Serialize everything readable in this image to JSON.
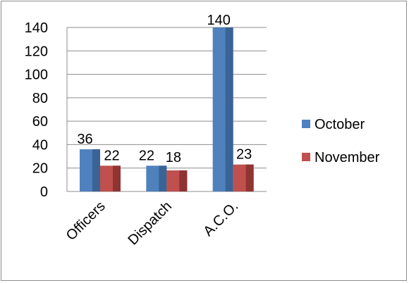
{
  "chart_data": {
    "type": "bar",
    "categories": [
      "Officers",
      "Dispatch",
      "A.C.O."
    ],
    "series": [
      {
        "name": "October",
        "values": [
          36,
          22,
          140
        ],
        "color": "#4f81bd",
        "side_color": "#3a6396"
      },
      {
        "name": "November",
        "values": [
          22,
          18,
          23
        ],
        "color": "#c0504d",
        "side_color": "#8f3432"
      }
    ],
    "ylim": [
      0,
      140
    ],
    "yticks": [
      "0",
      "20",
      "40",
      "60",
      "80",
      "100",
      "120",
      "140"
    ],
    "grid": true,
    "legend_position": "right",
    "data_labels": true,
    "style": "3d-clustered-column"
  }
}
